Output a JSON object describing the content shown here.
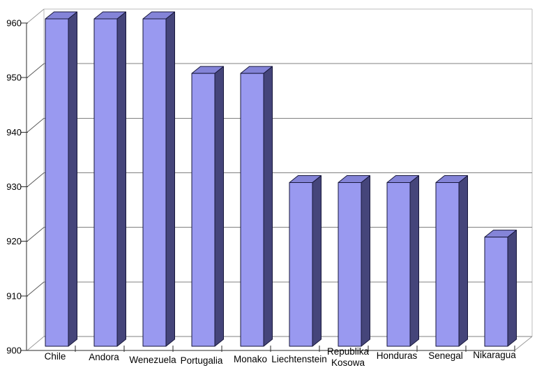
{
  "chart_data": {
    "type": "bar",
    "projection": "3d",
    "title": "",
    "subtitle": "",
    "xlabel": "",
    "ylabel": "",
    "categories": [
      "Chile",
      "Andora",
      "Wenezuela",
      "Portugalia",
      "Monako",
      "Liechtenstein",
      "Republika Kosowa",
      "Honduras",
      "Senegal",
      "Nikaragua"
    ],
    "values": [
      960,
      960,
      960,
      950,
      950,
      930,
      930,
      930,
      930,
      920
    ],
    "ylim": [
      900,
      960
    ],
    "yticks": [
      900,
      910,
      920,
      930,
      940,
      950,
      960
    ],
    "ytick_interval": 10,
    "grid": true,
    "legend": false,
    "colors": {
      "bar_front": "#9999F0",
      "bar_top": "#8484D8",
      "bar_side": "#45457A",
      "bar_outline": "#17173B",
      "gridline": "#808080",
      "wall_edge": "#BDBDBD",
      "axis": "#2B2B2B",
      "depth_line": "#5A5A5A",
      "floor_edge": "#9A9A9A",
      "background": "#FFFFFF",
      "text": "#000000"
    }
  }
}
